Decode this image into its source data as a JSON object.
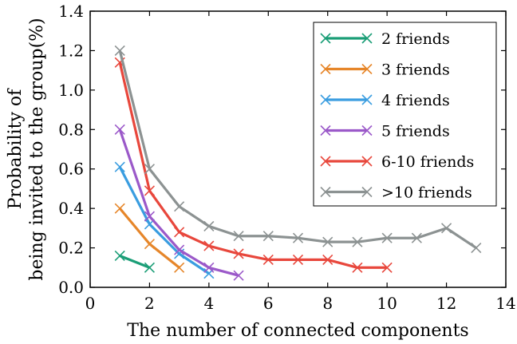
{
  "chart_data": {
    "type": "line",
    "xlabel": "The number of connected components",
    "ylabel_lines": [
      "Probability of",
      "being invited to the group(%)"
    ],
    "xlim": [
      0,
      14
    ],
    "ylim": [
      0.0,
      1.4
    ],
    "x_ticks": [
      "0",
      "2",
      "4",
      "6",
      "8",
      "10",
      "12",
      "14"
    ],
    "y_ticks": [
      "0.0",
      "0.2",
      "0.4",
      "0.6",
      "0.8",
      "1.0",
      "1.2",
      "1.4"
    ],
    "grid": false,
    "legend_position": "top-right",
    "marker": "x",
    "series": [
      {
        "name": "2 friends",
        "color": "#1b9e77",
        "x": [
          1,
          2
        ],
        "y": [
          0.16,
          0.1
        ]
      },
      {
        "name": "3 friends",
        "color": "#e6862a",
        "x": [
          1,
          2,
          3
        ],
        "y": [
          0.4,
          0.22,
          0.1
        ]
      },
      {
        "name": "4 friends",
        "color": "#3a9de0",
        "x": [
          1,
          2,
          3,
          4
        ],
        "y": [
          0.61,
          0.32,
          0.17,
          0.07
        ]
      },
      {
        "name": "5 friends",
        "color": "#9b59c9",
        "x": [
          1,
          2,
          3,
          4,
          5
        ],
        "y": [
          0.8,
          0.36,
          0.19,
          0.1,
          0.06
        ]
      },
      {
        "name": "6-10 friends",
        "color": "#e8473c",
        "x": [
          1,
          2,
          3,
          4,
          5,
          6,
          7,
          8,
          9,
          10
        ],
        "y": [
          1.14,
          0.49,
          0.28,
          0.21,
          0.17,
          0.14,
          0.14,
          0.14,
          0.1,
          0.1
        ]
      },
      {
        "name": ">10 friends",
        "color": "#8c9292",
        "x": [
          1,
          2,
          3,
          4,
          5,
          6,
          7,
          8,
          9,
          10,
          11,
          12,
          13
        ],
        "y": [
          1.2,
          0.6,
          0.41,
          0.31,
          0.26,
          0.26,
          0.25,
          0.23,
          0.23,
          0.25,
          0.25,
          0.3,
          0.2
        ]
      }
    ]
  }
}
